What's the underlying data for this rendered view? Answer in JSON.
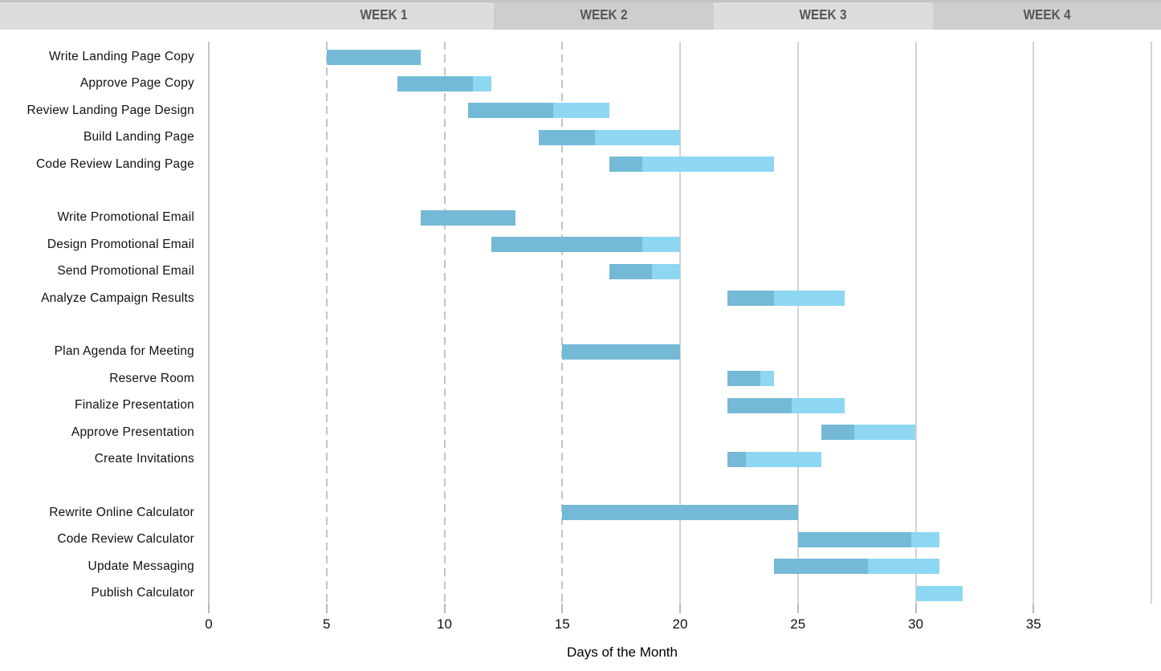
{
  "header": {
    "weeks": [
      {
        "label": "WEEK 1"
      },
      {
        "label": "WEEK 2"
      },
      {
        "label": "WEEK 3"
      },
      {
        "label": "WEEK 4"
      }
    ],
    "colors": {
      "light": "#dddddd",
      "dark": "#cecece",
      "top_edge": "#c3c3c3",
      "text": "#575757"
    }
  },
  "chart_data": {
    "type": "bar",
    "variant": "gantt",
    "title": "",
    "xlabel": "Days of the Month",
    "xlim": [
      0,
      40
    ],
    "xticks": [
      0,
      5,
      10,
      15,
      20,
      25,
      30,
      35
    ],
    "gridlines": {
      "dashed_days": [
        5,
        10,
        15
      ],
      "solid_days": [
        20,
        25,
        30,
        35,
        40
      ]
    },
    "legend": "none",
    "bar_colors": {
      "complete": "#74b9d5",
      "remaining": "#8ed7f2"
    },
    "task_groups": [
      [
        {
          "label": "Write Landing Page Copy",
          "start_day": 5,
          "end_day": 9,
          "percent_complete": 100
        },
        {
          "label": "Approve Page Copy",
          "start_day": 8,
          "end_day": 12,
          "percent_complete": 80
        },
        {
          "label": "Review Landing Page Design",
          "start_day": 11,
          "end_day": 17,
          "percent_complete": 60
        },
        {
          "label": "Build Landing Page",
          "start_day": 14,
          "end_day": 20,
          "percent_complete": 40
        },
        {
          "label": "Code Review Landing Page",
          "start_day": 17,
          "end_day": 24,
          "percent_complete": 20
        }
      ],
      [
        {
          "label": "Write Promotional Email",
          "start_day": 9,
          "end_day": 13,
          "percent_complete": 100
        },
        {
          "label": "Design Promotional Email",
          "start_day": 12,
          "end_day": 20,
          "percent_complete": 80
        },
        {
          "label": "Send Promotional Email",
          "start_day": 17,
          "end_day": 20,
          "percent_complete": 60
        },
        {
          "label": "Analyze Campaign Results",
          "start_day": 22,
          "end_day": 27,
          "percent_complete": 40
        }
      ],
      [
        {
          "label": "Plan Agenda for Meeting",
          "start_day": 15,
          "end_day": 20,
          "percent_complete": 100
        },
        {
          "label": "Reserve Room",
          "start_day": 22,
          "end_day": 24,
          "percent_complete": 70
        },
        {
          "label": "Finalize Presentation",
          "start_day": 22,
          "end_day": 27,
          "percent_complete": 55
        },
        {
          "label": "Approve Presentation",
          "start_day": 26,
          "end_day": 30,
          "percent_complete": 35
        },
        {
          "label": "Create Invitations",
          "start_day": 22,
          "end_day": 26,
          "percent_complete": 20
        }
      ],
      [
        {
          "label": "Rewrite Online Calculator",
          "start_day": 15,
          "end_day": 25,
          "percent_complete": 100
        },
        {
          "label": "Code Review Calculator",
          "start_day": 25,
          "end_day": 31,
          "percent_complete": 80
        },
        {
          "label": "Update Messaging",
          "start_day": 24,
          "end_day": 31,
          "percent_complete": 57
        },
        {
          "label": "Publish Calculator",
          "start_day": 30,
          "end_day": 32,
          "percent_complete": 0
        }
      ]
    ]
  }
}
